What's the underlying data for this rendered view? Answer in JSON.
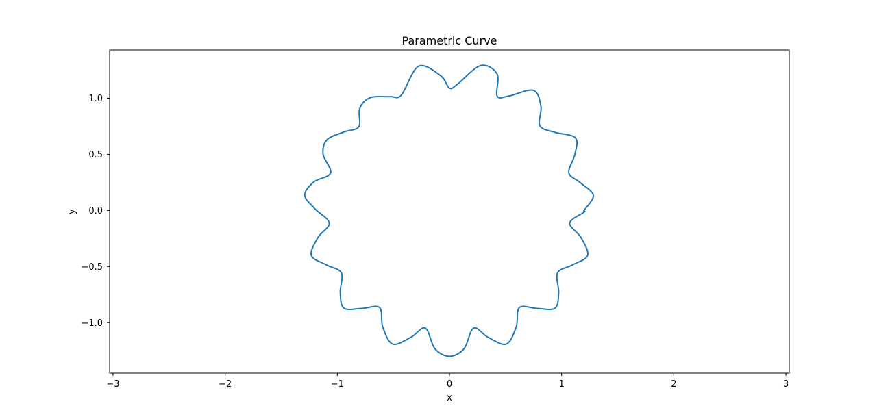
{
  "chart_data": {
    "type": "line",
    "title": "Parametric Curve",
    "xlabel": "x",
    "ylabel": "y",
    "xlim": [
      -3.03,
      3.03
    ],
    "ylim": [
      -1.45,
      1.43
    ],
    "x_ticks": [
      -3,
      -2,
      -1,
      0,
      1,
      2,
      3
    ],
    "x_tick_labels": [
      "−3",
      "−2",
      "−1",
      "0",
      "1",
      "2",
      "3"
    ],
    "y_ticks": [
      -1.0,
      -0.5,
      0.0,
      0.5,
      1.0
    ],
    "y_tick_labels": [
      "−1.0",
      "−0.5",
      "0.0",
      "0.5",
      "1.0"
    ],
    "grid": false,
    "legend": "none",
    "series": [
      {
        "color": "#1f77b4",
        "curve": "r(t) = 1.2 + 0.1·sin(16t), x = r·cos(t), y = r·sin(t)",
        "points": [
          [
            1.2,
            0.0
          ],
          [
            1.2828,
            0.1346
          ],
          [
            1.1637,
            0.2495
          ],
          [
            1.0641,
            0.3357
          ],
          [
            1.1184,
            0.4996
          ],
          [
            1.1224,
            0.6473
          ],
          [
            0.9351,
            0.6973
          ],
          [
            0.8059,
            0.7555
          ],
          [
            0.8158,
            0.9267
          ],
          [
            0.7486,
            1.0707
          ],
          [
            0.5335,
            1.0206
          ],
          [
            0.4251,
            1.0191
          ],
          [
            0.4252,
            1.2147
          ],
          [
            0.2787,
            1.2917
          ],
          [
            0.0746,
            1.1278
          ],
          [
            0.0,
            1.0902
          ],
          [
            -0.0786,
            1.2012
          ],
          [
            -0.2762,
            1.2849
          ],
          [
            -0.4291,
            1.0287
          ],
          [
            -0.5292,
            1.0143
          ],
          [
            -0.7046,
            1.0055
          ],
          [
            -0.8003,
            0.9094
          ],
          [
            -0.8085,
            0.7458
          ],
          [
            -0.9378,
            0.7003
          ],
          [
            -1.0923,
            0.6296
          ],
          [
            -1.1267,
            0.5002
          ],
          [
            -1.0598,
            0.3342
          ],
          [
            -1.2114,
            0.2525
          ],
          [
            -1.2905,
            0.1354
          ],
          [
            -1.2004,
            0.0157
          ],
          [
            -1.0716,
            -0.1124
          ],
          [
            -1.1729,
            -0.2416
          ],
          [
            -1.2317,
            -0.4012
          ],
          [
            -1.0977,
            -0.4853
          ],
          [
            -0.9639,
            -0.5565
          ],
          [
            -0.9736,
            -0.7328
          ],
          [
            -0.9405,
            -0.8715
          ],
          [
            -0.7811,
            -0.8733
          ],
          [
            -0.6234,
            -0.8654
          ],
          [
            -0.5955,
            -1.0361
          ],
          [
            -0.5065,
            -1.1913
          ],
          [
            -0.3425,
            -1.1296
          ],
          [
            -0.2155,
            -1.0481
          ],
          [
            -0.1293,
            -1.2331
          ],
          [
            0.0,
            -1.3
          ],
          [
            0.1293,
            -1.2331
          ],
          [
            0.2155,
            -1.0481
          ],
          [
            0.3425,
            -1.1296
          ],
          [
            0.5065,
            -1.1913
          ],
          [
            0.5955,
            -1.0361
          ],
          [
            0.6234,
            -0.8654
          ],
          [
            0.7811,
            -0.8733
          ],
          [
            0.9405,
            -0.8715
          ],
          [
            0.9736,
            -0.7328
          ],
          [
            0.9639,
            -0.5565
          ],
          [
            1.0977,
            -0.4853
          ],
          [
            1.2317,
            -0.4012
          ],
          [
            1.1729,
            -0.2416
          ],
          [
            1.0716,
            -0.1124
          ],
          [
            1.2004,
            -0.0157
          ],
          [
            1.2,
            0.0
          ]
        ]
      }
    ]
  }
}
